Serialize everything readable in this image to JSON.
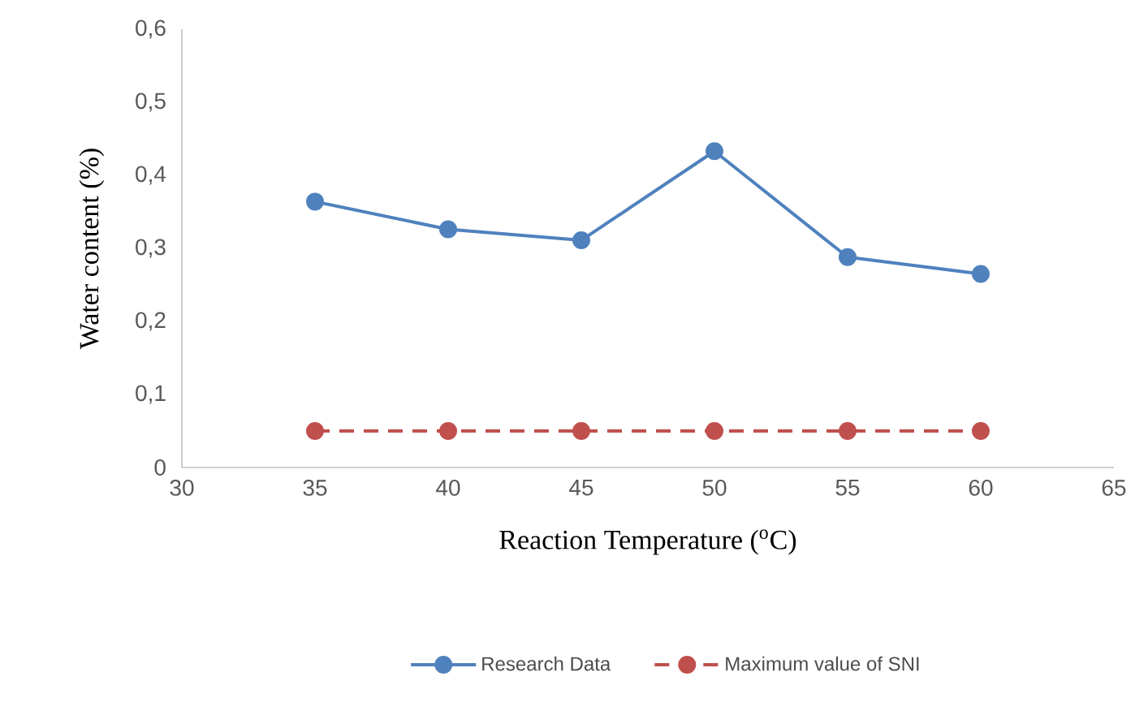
{
  "chart_data": {
    "type": "line",
    "xlabel": "Reaction Temperature ($^{o}$C)",
    "ylabel": "Water content  (%)",
    "x": [
      35,
      40,
      45,
      50,
      55,
      60
    ],
    "series": [
      {
        "name": "Research Data",
        "color": "#4f81bd",
        "line_style": "solid",
        "values": [
          0.364,
          0.326,
          0.311,
          0.433,
          0.288,
          0.265
        ]
      },
      {
        "name": "Maximum value of SNI",
        "color": "#c0504d",
        "line_style": "dashed",
        "values": [
          0.05,
          0.05,
          0.05,
          0.05,
          0.05,
          0.05
        ]
      }
    ],
    "xlim": [
      30,
      65
    ],
    "xticks": [
      30,
      35,
      40,
      45,
      50,
      55,
      60,
      65
    ],
    "ylim": [
      0,
      0.6
    ],
    "yticks": [
      0,
      {
        "value": 0.1,
        "label": "0,1"
      },
      {
        "value": 0.2,
        "label": "0,2"
      },
      {
        "value": 0.3,
        "label": "0,3"
      },
      {
        "value": 0.4,
        "label": "0,4"
      },
      {
        "value": 0.5,
        "label": "0,5"
      },
      {
        "value": 0.6,
        "label": "0,6"
      }
    ],
    "grid": false,
    "legend": "bottom",
    "marker": "circle"
  }
}
